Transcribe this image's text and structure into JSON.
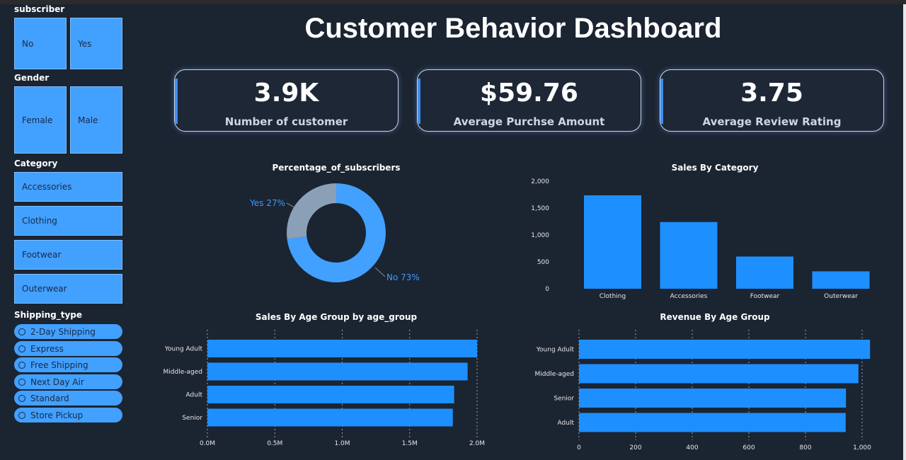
{
  "title": "Customer Behavior Dashboard",
  "slicers": {
    "subscriber": {
      "title": "subscriber",
      "options": [
        "No",
        "Yes"
      ]
    },
    "gender": {
      "title": "Gender",
      "options": [
        "Female",
        "Male"
      ]
    },
    "category": {
      "title": "Category",
      "options": [
        "Accessories",
        "Clothing",
        "Footwear",
        "Outerwear"
      ]
    },
    "shipping": {
      "title": "Shipping_type",
      "options": [
        "2-Day Shipping",
        "Express",
        "Free Shipping",
        "Next Day Air",
        "Standard",
        "Store Pickup"
      ]
    }
  },
  "kpis": [
    {
      "value": "3.9K",
      "label": "Number of customer"
    },
    {
      "value": "$59.76",
      "label": "Average Purchse Amount"
    },
    {
      "value": "3.75",
      "label": "Average Review Rating"
    }
  ],
  "colors": {
    "accent": "#42a0ff",
    "bar": "#1e8fff",
    "donut_no": "#42a0ff",
    "donut_yes": "#8aa0b6",
    "background": "#1b2431"
  },
  "chart_data": [
    {
      "type": "pie",
      "title": "Percentage_of_subscribers",
      "slices": [
        {
          "label": "No 73%",
          "value": 73
        },
        {
          "label": "Yes 27%",
          "value": 27
        }
      ]
    },
    {
      "type": "bar",
      "title": "Sales By Category",
      "categories": [
        "Clothing",
        "Accessories",
        "Footwear",
        "Outerwear"
      ],
      "values": [
        1737,
        1240,
        599,
        324
      ],
      "ylim": [
        0,
        2000
      ],
      "yticks": [
        "0",
        "500",
        "1,000",
        "1,500",
        "2,000"
      ],
      "grid": false
    },
    {
      "type": "bar",
      "orientation": "horizontal",
      "title": "Sales By Age Group by age_group",
      "categories": [
        "Young Adult",
        "Middle-aged",
        "Adult",
        "Senior"
      ],
      "values": [
        2.0,
        1.93,
        1.83,
        1.82
      ],
      "xlim": [
        0,
        2.0
      ],
      "xticks": [
        "0.0M",
        "0.5M",
        "1.0M",
        "1.5M",
        "2.0M"
      ],
      "grid": true
    },
    {
      "type": "bar",
      "orientation": "horizontal",
      "title": "Revenue By Age Group",
      "categories": [
        "Young Adult",
        "Middle-aged",
        "Senior",
        "Adult"
      ],
      "values": [
        1028,
        987,
        943,
        942
      ],
      "xlim": [
        0,
        1000
      ],
      "xticks": [
        "0",
        "200",
        "400",
        "600",
        "800",
        "1,000"
      ],
      "grid": true
    }
  ]
}
